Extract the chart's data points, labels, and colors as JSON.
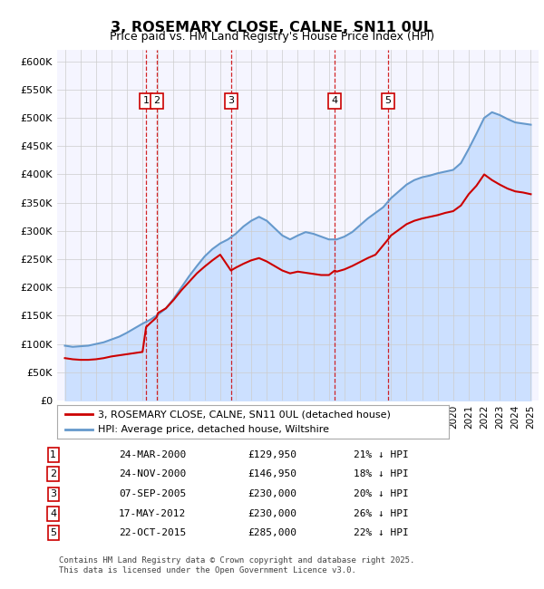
{
  "title": "3, ROSEMARY CLOSE, CALNE, SN11 0UL",
  "subtitle": "Price paid vs. HM Land Registry's House Price Index (HPI)",
  "footer": "Contains HM Land Registry data © Crown copyright and database right 2025.\nThis data is licensed under the Open Government Licence v3.0.",
  "legend_line1": "3, ROSEMARY CLOSE, CALNE, SN11 0UL (detached house)",
  "legend_line2": "HPI: Average price, detached house, Wiltshire",
  "sales": [
    {
      "label": "1",
      "date": "24-MAR-2000",
      "price": 129950,
      "pct": "21%",
      "x": 2000.23
    },
    {
      "label": "2",
      "date": "24-NOV-2000",
      "price": 146950,
      "pct": "18%",
      "x": 2000.9
    },
    {
      "label": "3",
      "date": "07-SEP-2005",
      "price": 230000,
      "pct": "20%",
      "x": 2005.69
    },
    {
      "label": "4",
      "date": "17-MAY-2012",
      "price": 230000,
      "pct": "26%",
      "x": 2012.38
    },
    {
      "label": "5",
      "date": "22-OCT-2015",
      "price": 285000,
      "pct": "22%",
      "x": 2015.81
    }
  ],
  "price_color": "#cc0000",
  "hpi_color": "#6699cc",
  "hpi_fill_color": "#cce0ff",
  "grid_color": "#cccccc",
  "sale_line_color": "#cc0000",
  "background_color": "#ffffff",
  "plot_bg_color": "#f5f5ff",
  "ylim": [
    0,
    620000
  ],
  "xlim": [
    1994.5,
    2025.5
  ],
  "yticks": [
    0,
    50000,
    100000,
    150000,
    200000,
    250000,
    300000,
    350000,
    400000,
    450000,
    500000,
    550000,
    600000
  ],
  "ytick_labels": [
    "£0",
    "£50K",
    "£100K",
    "£150K",
    "£200K",
    "£250K",
    "£300K",
    "£350K",
    "£400K",
    "£450K",
    "£500K",
    "£550K",
    "£600K"
  ],
  "xticks": [
    1995,
    1996,
    1997,
    1998,
    1999,
    2000,
    2001,
    2002,
    2003,
    2004,
    2005,
    2006,
    2007,
    2008,
    2009,
    2010,
    2011,
    2012,
    2013,
    2014,
    2015,
    2016,
    2017,
    2018,
    2019,
    2020,
    2021,
    2022,
    2023,
    2024,
    2025
  ]
}
